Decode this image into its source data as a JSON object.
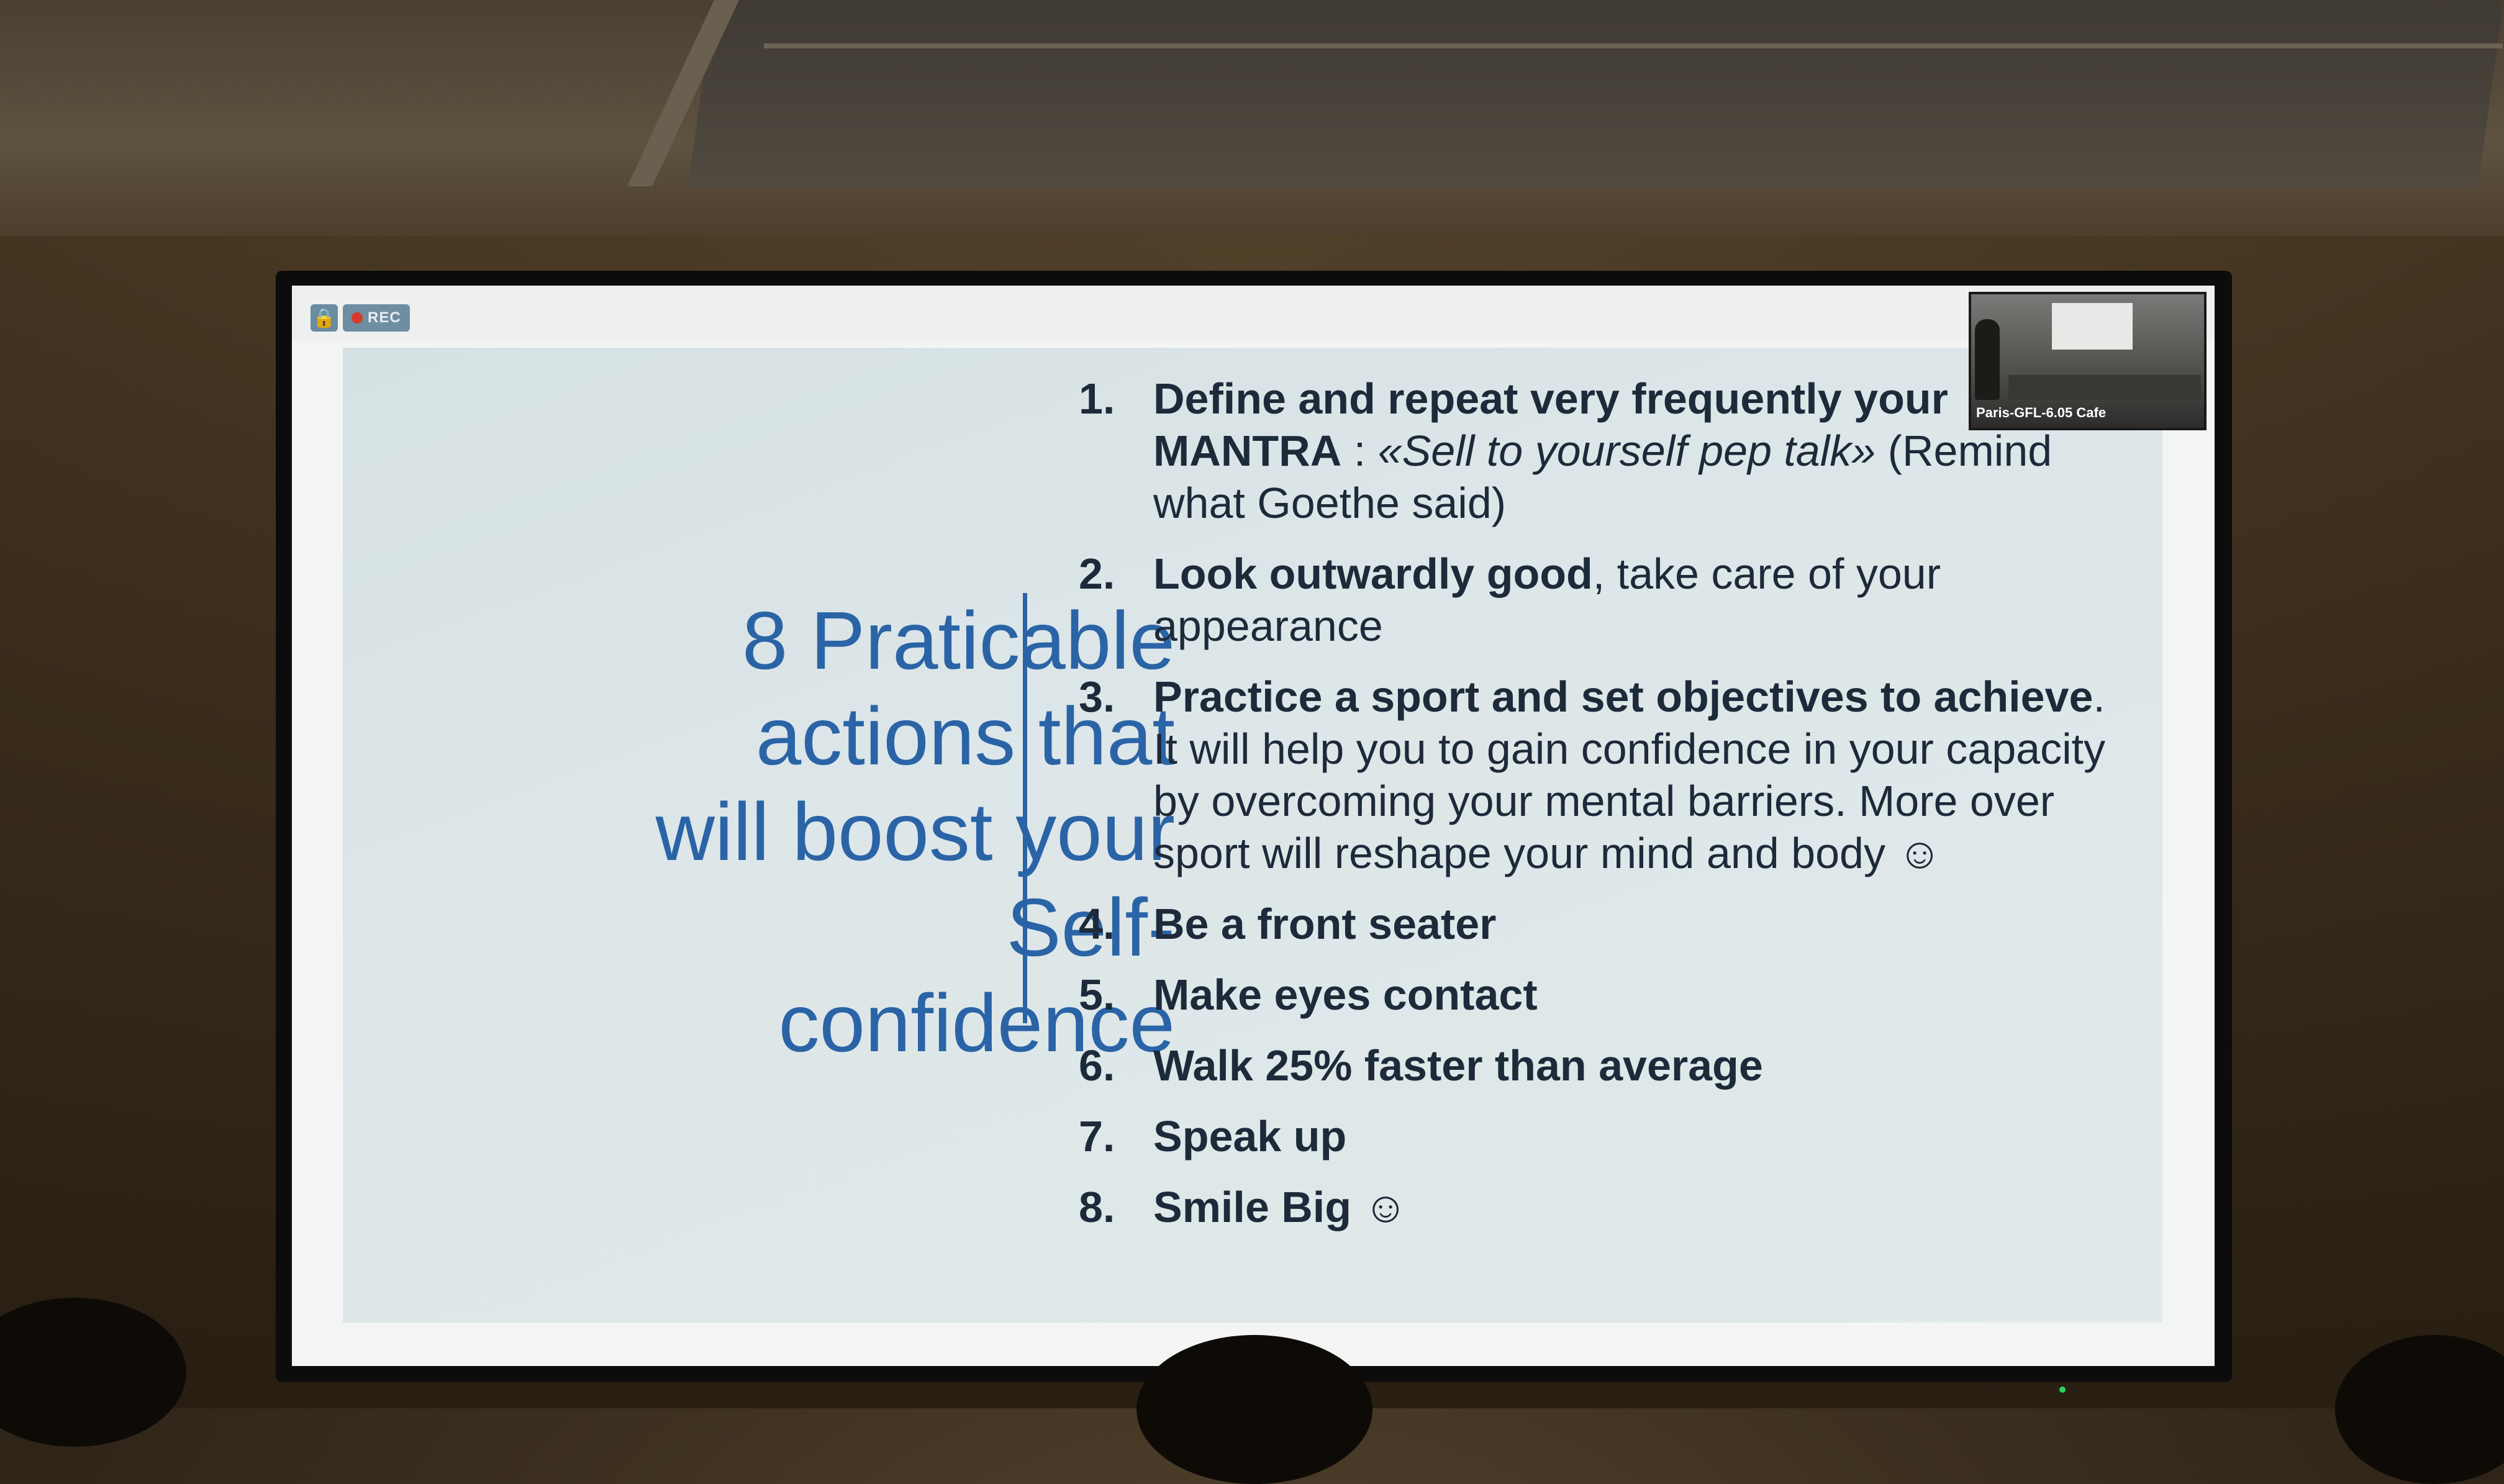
{
  "toolbar": {
    "lock_icon": "lock-icon",
    "rec_label": "REC",
    "rec_color": "#d73a2a"
  },
  "slide": {
    "title_lines": [
      "8 Praticable",
      "actions that",
      "will boost your",
      "Self-",
      "confidence"
    ],
    "title_color": "#2a64a6",
    "items": [
      {
        "number": "1.",
        "bold": "Define and repeat very frequently your MANTRA",
        "sep": " : ",
        "italic": "«Sell to yourself  pep talk»",
        "rest": " (Remind what Goethe said)"
      },
      {
        "number": "2.",
        "bold": "Look outwardly good",
        "rest": ", take care of your appearance"
      },
      {
        "number": "3.",
        "bold": "Practice a sport and set objectives to achieve",
        "rest": ". It will help you to gain confidence in your capacity by overcoming your mental barriers. More over sport will reshape your mind and body ☺"
      },
      {
        "number": "4.",
        "bold": "Be a front seater"
      },
      {
        "number": "5.",
        "bold": "Make eyes contact"
      },
      {
        "number": "6.",
        "bold": "Walk 25% faster than average"
      },
      {
        "number": "7.",
        "bold": "Speak up"
      },
      {
        "number": "8.",
        "bold": "Smile Big",
        "rest": " ☺"
      }
    ]
  },
  "camera": {
    "label": "Paris-GFL-6.05 Cafe"
  }
}
